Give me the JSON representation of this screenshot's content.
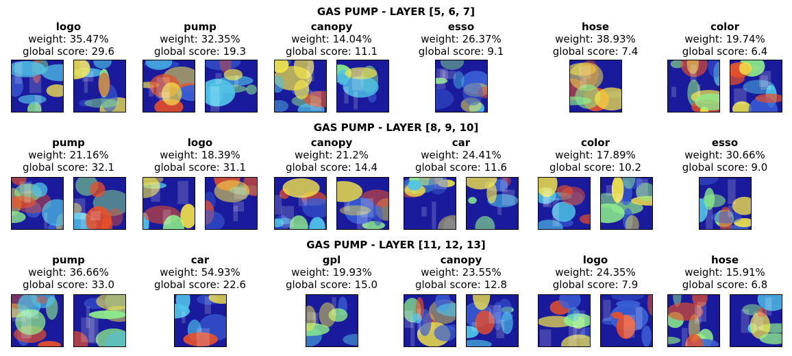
{
  "rows": [
    {
      "title": "GAS PUMP - LAYER [5, 6, 7]",
      "concepts": [
        {
          "name": "logo",
          "weight": "weight: 35.47%",
          "score": "global score: 29.6",
          "thumbs": 2
        },
        {
          "name": "pump",
          "weight": "weight: 32.35%",
          "score": "global score: 19.3",
          "thumbs": 2
        },
        {
          "name": "canopy",
          "weight": "weight: 14.04%",
          "score": "global score: 11.1",
          "thumbs": 2
        },
        {
          "name": "esso",
          "weight": "weight: 26.37%",
          "score": "global score: 9.1",
          "thumbs": 1
        },
        {
          "name": "hose",
          "weight": "weight: 38.93%",
          "score": "global score: 7.4",
          "thumbs": 1
        },
        {
          "name": "color",
          "weight": "weight: 19.74%",
          "score": "global score: 6.4",
          "thumbs": 2
        }
      ]
    },
    {
      "title": "GAS PUMP - LAYER [8, 9, 10]",
      "concepts": [
        {
          "name": "pump",
          "weight": "weight: 21.16%",
          "score": "global score: 32.1",
          "thumbs": 2
        },
        {
          "name": "logo",
          "weight": "weight: 18.39%",
          "score": "global score: 31.1",
          "thumbs": 2
        },
        {
          "name": "canopy",
          "weight": "weight: 21.2%",
          "score": "global score: 14.4",
          "thumbs": 2
        },
        {
          "name": "car",
          "weight": "weight: 24.41%",
          "score": "global score: 11.6",
          "thumbs": 2
        },
        {
          "name": "color",
          "weight": "weight: 17.89%",
          "score": "global score: 10.2",
          "thumbs": 2
        },
        {
          "name": "esso",
          "weight": "weight: 30.66%",
          "score": "global score: 9.0",
          "thumbs": 1
        }
      ]
    },
    {
      "title": "GAS PUMP - LAYER [11, 12, 13]",
      "concepts": [
        {
          "name": "pump",
          "weight": "weight: 36.66%",
          "score": "global score: 33.0",
          "thumbs": 2
        },
        {
          "name": "car",
          "weight": "weight: 54.93%",
          "score": "global score: 22.6",
          "thumbs": 1
        },
        {
          "name": "gpl",
          "weight": "weight: 19.93%",
          "score": "global score: 15.0",
          "thumbs": 1
        },
        {
          "name": "canopy",
          "weight": "weight: 23.55%",
          "score": "global score: 12.8",
          "thumbs": 2
        },
        {
          "name": "logo",
          "weight": "weight: 24.35%",
          "score": "global score: 7.9",
          "thumbs": 2
        },
        {
          "name": "hose",
          "weight": "weight: 15.91%",
          "score": "global score: 6.8",
          "thumbs": 2
        }
      ]
    }
  ],
  "heatmap_colors": [
    "#1a1a9c",
    "#3a5fd6",
    "#4fc3e8",
    "#8ef08a",
    "#f2e44a",
    "#e8502a"
  ]
}
